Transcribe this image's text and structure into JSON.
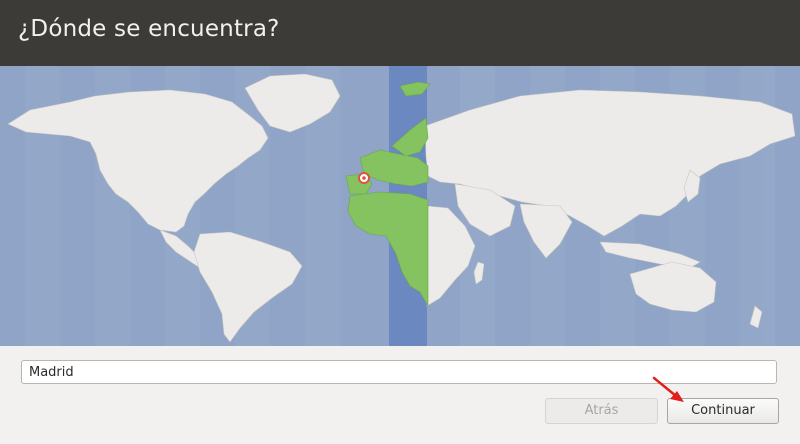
{
  "window": {
    "title": "¿Dónde se encuentra?"
  },
  "map": {
    "selected_city": "Madrid",
    "selected_timezone_highlight": true,
    "colors": {
      "ocean": "#8fa4c6",
      "land": "#ecebe9",
      "selected_zone_band": "#6b88c1",
      "selected_zone_land": "#84c35f",
      "city_marker": "#e0533c"
    }
  },
  "location": {
    "value": "Madrid"
  },
  "buttons": {
    "back_label": "Atrás",
    "continue_label": "Continuar"
  },
  "annotation": {
    "arrow_color": "#e0201b"
  }
}
